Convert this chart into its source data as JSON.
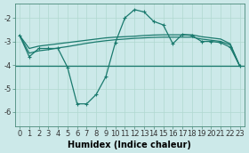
{
  "xlabel": "Humidex (Indice chaleur)",
  "background_color": "#cce9e9",
  "line_color": "#1a7a6e",
  "xlim": [
    -0.5,
    23.5
  ],
  "ylim": [
    -6.6,
    -1.4
  ],
  "yticks": [
    -6,
    -5,
    -4,
    -3,
    -2
  ],
  "xticks": [
    0,
    1,
    2,
    3,
    4,
    5,
    6,
    7,
    8,
    9,
    10,
    11,
    12,
    13,
    14,
    15,
    16,
    17,
    18,
    19,
    20,
    21,
    22,
    23
  ],
  "grid_color": "#b0d8d0",
  "tick_fontsize": 6,
  "label_fontsize": 7,
  "series1_x": [
    0,
    1,
    2,
    3,
    4,
    5,
    6,
    7,
    8,
    9,
    10,
    11,
    12,
    13,
    14,
    15,
    16,
    17,
    18,
    19,
    20,
    21,
    22,
    23
  ],
  "series1_y": [
    -2.75,
    -3.65,
    -3.3,
    -3.3,
    -3.3,
    -4.1,
    -5.65,
    -5.65,
    -5.25,
    -4.5,
    -3.05,
    -2.0,
    -1.65,
    -1.75,
    -2.15,
    -2.3,
    -3.1,
    -2.7,
    -2.75,
    -3.0,
    -3.0,
    -3.05,
    -3.25,
    -4.05
  ],
  "series2_x": [
    0,
    1,
    2,
    3,
    4,
    5,
    6,
    7,
    8,
    9,
    10,
    11,
    12,
    13,
    14,
    15,
    16,
    17,
    18,
    19,
    20,
    21,
    22,
    23
  ],
  "series2_y": [
    -2.75,
    -3.3,
    -3.2,
    -3.15,
    -3.1,
    -3.05,
    -3.0,
    -2.95,
    -2.9,
    -2.85,
    -2.82,
    -2.8,
    -2.78,
    -2.75,
    -2.73,
    -2.72,
    -2.72,
    -2.72,
    -2.72,
    -2.8,
    -2.85,
    -2.9,
    -3.1,
    -4.05
  ],
  "series3_x": [
    0,
    1,
    2,
    3,
    4,
    5,
    6,
    7,
    8,
    9,
    10,
    11,
    12,
    13,
    14,
    15,
    16,
    17,
    18,
    19,
    20,
    21,
    22,
    23
  ],
  "series3_y": [
    -2.75,
    -3.5,
    -3.4,
    -3.35,
    -3.28,
    -3.22,
    -3.15,
    -3.08,
    -3.02,
    -2.97,
    -2.93,
    -2.9,
    -2.87,
    -2.85,
    -2.83,
    -2.82,
    -2.82,
    -2.82,
    -2.82,
    -2.9,
    -2.95,
    -3.0,
    -3.15,
    -4.05
  ],
  "hline_y": -4.05
}
